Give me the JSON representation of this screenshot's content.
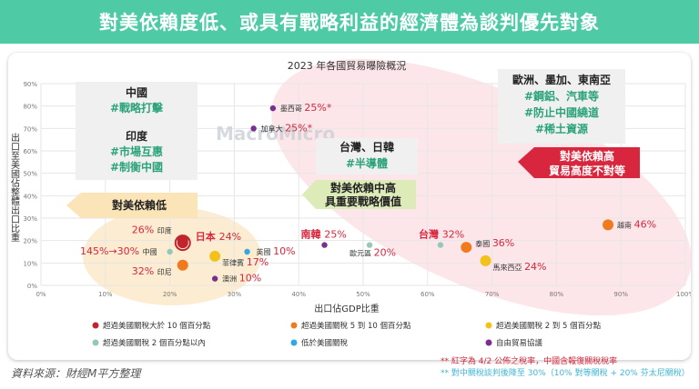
{
  "banner": {
    "title": "對美依賴度低、或具有戰略利益的經濟體為談判優先對象"
  },
  "watermark": "MacroMicro",
  "source": "資料來源：財經M平方整理",
  "notes": {
    "n1": "** 紅字為 4/2 公佈之稅率，中國含報復關稅稅率",
    "n2": "** 對中關稅談判後降至 30%（10% 對等關稅 + 20% 芬太尼關稅）"
  },
  "colors": {
    "red": "#c0252d",
    "orange": "#f07b1e",
    "yellow": "#f2c21b",
    "teal": "#94c9b9",
    "blue": "#2fa9df",
    "purple": "#7a2f8f",
    "accent_red": "#d7263d",
    "green": "#2aa37a"
  },
  "chart_data": {
    "type": "scatter",
    "title": "2023 年各國貿易曝險概況",
    "xlabel": "出口佔GDP比重",
    "ylabel": "出口至美國佔整體出口比重",
    "xlim": [
      0,
      100
    ],
    "ylim": [
      0,
      90
    ],
    "x_ticks": [
      "0%",
      "10%",
      "20%",
      "30%",
      "40%",
      "50%",
      "60%",
      "70%",
      "80%",
      "90%",
      "100%"
    ],
    "y_ticks": [
      "0%",
      "10%",
      "20%",
      "30%",
      "40%",
      "50%",
      "60%",
      "70%",
      "80%",
      "90%"
    ],
    "legend": [
      {
        "name": "超過美國關稅大於 10 個百分點",
        "color": "#c0252d"
      },
      {
        "name": "超過美國關稅 5 到 10 個百分點",
        "color": "#f07b1e"
      },
      {
        "name": "超過美國關稅 2 到 5 個百分點",
        "color": "#f2c21b"
      },
      {
        "name": "超過美國關稅 2 個百分點以內",
        "color": "#94c9b9"
      },
      {
        "name": "低於美國關稅",
        "color": "#2fa9df"
      },
      {
        "name": "自由貿易協議",
        "color": "#7a2f8f"
      }
    ],
    "points": [
      {
        "name": "墨西哥",
        "x": 36,
        "y": 79,
        "cat": 5,
        "rate": "25%*"
      },
      {
        "name": "加拿大",
        "x": 33,
        "y": 70,
        "cat": 5,
        "rate": "25%*"
      },
      {
        "name": "印度",
        "x": 22,
        "y": 20,
        "cat": 0,
        "rate": "26%"
      },
      {
        "name": "日本",
        "x": 22,
        "y": 19,
        "cat": 0,
        "rate": "24%"
      },
      {
        "name": "中國",
        "x": 20,
        "y": 15,
        "cat": 3,
        "rate": "145%→30%"
      },
      {
        "name": "印尼",
        "x": 22,
        "y": 9,
        "cat": 1,
        "rate": "32%"
      },
      {
        "name": "菲律賓",
        "x": 27,
        "y": 13,
        "cat": 2,
        "rate": "17%"
      },
      {
        "name": "澳洲",
        "x": 27,
        "y": 3,
        "cat": 5,
        "rate": "10%"
      },
      {
        "name": "英國",
        "x": 32,
        "y": 15,
        "cat": 4,
        "rate": "10%"
      },
      {
        "name": "南韓",
        "x": 44,
        "y": 18,
        "cat": 5,
        "rate": "25%"
      },
      {
        "name": "歐元區",
        "x": 51,
        "y": 18,
        "cat": 3,
        "rate": "20%"
      },
      {
        "name": "台灣",
        "x": 62,
        "y": 18,
        "cat": 3,
        "rate": "32%"
      },
      {
        "name": "泰國",
        "x": 66,
        "y": 17,
        "cat": 1,
        "rate": "36%"
      },
      {
        "name": "馬來西亞",
        "x": 69,
        "y": 11,
        "cat": 2,
        "rate": "24%"
      },
      {
        "name": "越南",
        "x": 88,
        "y": 27,
        "cat": 1,
        "rate": "46%"
      }
    ],
    "annotations": {
      "china_box": {
        "title": "中國",
        "line1": "#戰略打擊"
      },
      "india_box": {
        "title": "印度",
        "line1": "#市場互惠",
        "line2": "#制衡中國"
      },
      "low_dep": "對美依賴低",
      "tw_jp_box": {
        "title": "台灣、日韓",
        "line1": "#半導體"
      },
      "mid_dep": {
        "line1": "對美依賴中高",
        "line2": "具重要戰略價值"
      },
      "eu_box": {
        "title": "歐洲、墨加、東南亞",
        "line1": "#鋼鋁、汽車等",
        "line2": "#防止中國繞道",
        "line3": "#稀土資源"
      },
      "high_dep": {
        "line1": "對美依賴高",
        "line2": "貿易高度不對等"
      }
    }
  }
}
